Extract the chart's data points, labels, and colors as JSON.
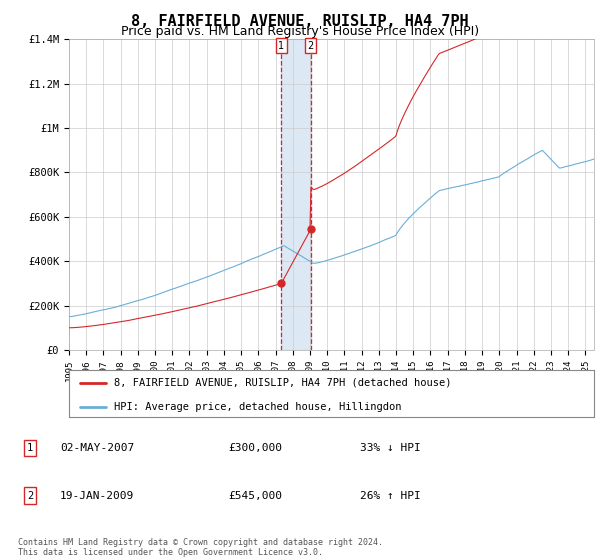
{
  "title": "8, FAIRFIELD AVENUE, RUISLIP, HA4 7PH",
  "subtitle": "Price paid vs. HM Land Registry's House Price Index (HPI)",
  "title_fontsize": 11,
  "subtitle_fontsize": 9,
  "ylim": [
    0,
    1400000
  ],
  "yticks": [
    0,
    200000,
    400000,
    600000,
    800000,
    1000000,
    1200000,
    1400000
  ],
  "ytick_labels": [
    "£0",
    "£200K",
    "£400K",
    "£600K",
    "£800K",
    "£1M",
    "£1.2M",
    "£1.4M"
  ],
  "hpi_color": "#6aaed6",
  "price_color": "#d62728",
  "shade_color": "#c6dbef",
  "grid_color": "#cccccc",
  "background_color": "#ffffff",
  "legend_label_price": "8, FAIRFIELD AVENUE, RUISLIP, HA4 7PH (detached house)",
  "legend_label_hpi": "HPI: Average price, detached house, Hillingdon",
  "transaction1_date": "02-MAY-2007",
  "transaction1_price": "£300,000",
  "transaction1_hpi": "33% ↓ HPI",
  "transaction2_date": "19-JAN-2009",
  "transaction2_price": "£545,000",
  "transaction2_hpi": "26% ↑ HPI",
  "footer": "Contains HM Land Registry data © Crown copyright and database right 2024.\nThis data is licensed under the Open Government Licence v3.0.",
  "transaction1_year": 2007.33,
  "transaction2_year": 2009.05,
  "transaction1_value": 300000,
  "transaction2_value": 545000,
  "xmin": 1995,
  "xmax": 2025.5
}
